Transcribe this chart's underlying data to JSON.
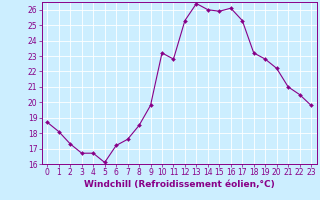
{
  "x": [
    0,
    1,
    2,
    3,
    4,
    5,
    6,
    7,
    8,
    9,
    10,
    11,
    12,
    13,
    14,
    15,
    16,
    17,
    18,
    19,
    20,
    21,
    22,
    23
  ],
  "y": [
    18.7,
    18.1,
    17.3,
    16.7,
    16.7,
    16.1,
    17.2,
    17.6,
    18.5,
    19.8,
    23.2,
    22.8,
    25.3,
    26.4,
    26.0,
    25.9,
    26.1,
    25.3,
    23.2,
    22.8,
    22.2,
    21.0,
    20.5,
    19.8
  ],
  "line_color": "#880088",
  "marker": "D",
  "marker_size": 2.0,
  "bg_color": "#cceeff",
  "grid_color": "#ffffff",
  "xlabel": "Windchill (Refroidissement éolien,°C)",
  "ylabel": "",
  "ylim": [
    16,
    26.5
  ],
  "xlim": [
    -0.5,
    23.5
  ],
  "yticks": [
    16,
    17,
    18,
    19,
    20,
    21,
    22,
    23,
    24,
    25,
    26
  ],
  "xticks": [
    0,
    1,
    2,
    3,
    4,
    5,
    6,
    7,
    8,
    9,
    10,
    11,
    12,
    13,
    14,
    15,
    16,
    17,
    18,
    19,
    20,
    21,
    22,
    23
  ],
  "axis_color": "#880088",
  "tick_fontsize": 5.5,
  "xlabel_fontsize": 6.5
}
